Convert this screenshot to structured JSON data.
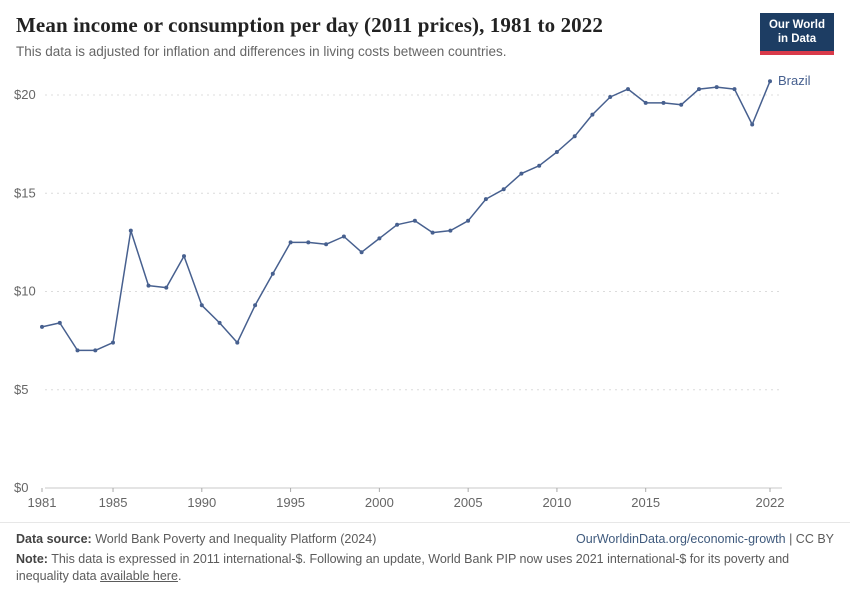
{
  "header": {
    "title": "Mean income or consumption per day (2011 prices), 1981 to 2022",
    "subtitle": "This data is adjusted for inflation and differences in living costs between countries.",
    "logo": {
      "line1": "Our World",
      "line2": "in Data"
    }
  },
  "colors": {
    "line": "#47608f",
    "grid": "#dcdcdc",
    "axis": "#c8c8c8",
    "tick_text": "#666666",
    "logo_navy": "#1d3d63",
    "logo_red": "#d93a4a"
  },
  "chart_data": {
    "type": "line",
    "title": "Mean income or consumption per day (2011 prices), 1981 to 2022",
    "xlabel": "",
    "ylabel": "",
    "xlim": [
      1981,
      2022
    ],
    "ylim": [
      0,
      20
    ],
    "grid": "horizontal-dashed",
    "legend_position": "end-of-line-label",
    "yticks": [
      0,
      5,
      10,
      15,
      20
    ],
    "ytick_labels": [
      "$0",
      "$5",
      "$10",
      "$15",
      "$20"
    ],
    "xticks": [
      1981,
      1985,
      1990,
      1995,
      2000,
      2005,
      2010,
      2015,
      2022
    ],
    "x": [
      1981,
      1982,
      1983,
      1984,
      1985,
      1986,
      1987,
      1988,
      1989,
      1990,
      1991,
      1992,
      1993,
      1994,
      1995,
      1996,
      1997,
      1998,
      1999,
      2000,
      2001,
      2002,
      2003,
      2004,
      2005,
      2006,
      2007,
      2008,
      2009,
      2010,
      2011,
      2012,
      2013,
      2014,
      2015,
      2016,
      2017,
      2018,
      2019,
      2020,
      2021,
      2022
    ],
    "series": [
      {
        "name": "Brazil",
        "color": "#47608f",
        "values": [
          8.2,
          8.4,
          7.0,
          7.0,
          7.4,
          13.1,
          10.3,
          10.2,
          11.8,
          9.3,
          8.4,
          7.4,
          9.3,
          10.9,
          12.5,
          12.5,
          12.4,
          12.8,
          12.0,
          12.7,
          13.4,
          13.6,
          13.0,
          13.1,
          13.6,
          14.7,
          15.2,
          16.0,
          16.4,
          17.1,
          17.9,
          19.0,
          19.9,
          20.3,
          19.6,
          19.6,
          19.5,
          20.3,
          20.4,
          20.3,
          18.5,
          20.7
        ]
      }
    ],
    "end_label": "Brazil"
  },
  "footer": {
    "datasource_label": "Data source:",
    "datasource_text": " World Bank Poverty and Inequality Platform (2024)",
    "credit_url": "OurWorldinData.org/economic-growth",
    "credit_license": " | CC BY",
    "note_label": "Note:",
    "note_text": " This data is expressed in 2011 international-$. Following an update, World Bank PIP now uses 2021 international-$ for its poverty and inequality data ",
    "note_link": "available here",
    "note_suffix": "."
  }
}
